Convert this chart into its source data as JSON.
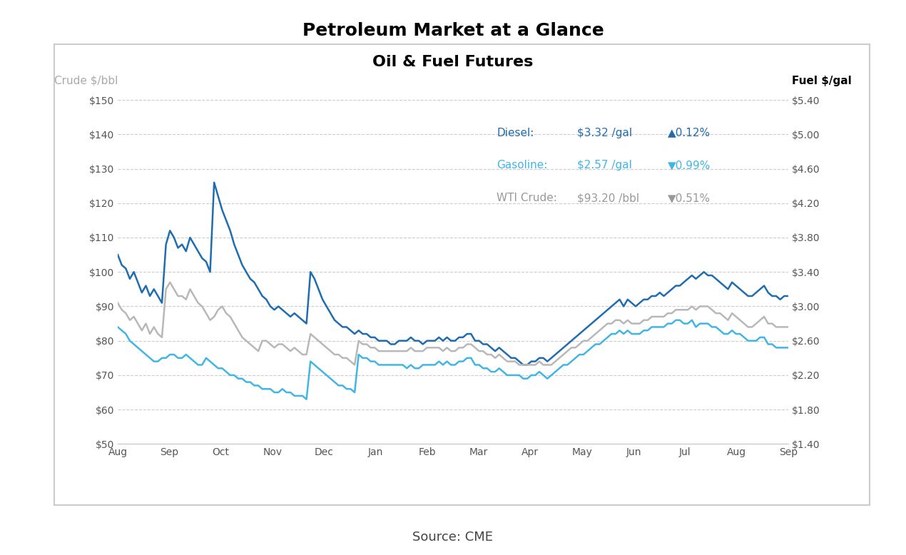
{
  "title": "Petroleum Market at a Glance",
  "subtitle": "Oil & Fuel Futures",
  "source": "Source: CME",
  "left_axis_label": "Crude $/bbl",
  "right_axis_label": "Fuel $/gal",
  "left_yticks": [
    50,
    60,
    70,
    80,
    90,
    100,
    110,
    120,
    130,
    140,
    150
  ],
  "left_ylabels": [
    "$50",
    "$60",
    "$70",
    "$80",
    "$90",
    "$100",
    "$110",
    "$120",
    "$130",
    "$140",
    "$150"
  ],
  "right_yticks": [
    1.4,
    1.8,
    2.2,
    2.6,
    3.0,
    3.4,
    3.8,
    4.2,
    4.6,
    5.0,
    5.4
  ],
  "right_ylabels": [
    "$1.40",
    "$1.80",
    "$2.20",
    "$2.60",
    "$3.00",
    "$3.40",
    "$3.80",
    "$4.20",
    "$4.60",
    "$5.00",
    "$5.40"
  ],
  "ylim_left": [
    50,
    150
  ],
  "ylim_right": [
    1.4,
    5.4
  ],
  "xtick_labels": [
    "Aug",
    "Sep",
    "Oct",
    "Nov",
    "Dec",
    "Jan",
    "Feb",
    "Mar",
    "Apr",
    "May",
    "Jun",
    "Jul",
    "Aug",
    "Sep"
  ],
  "legend": {
    "diesel_label": "Diesel:",
    "diesel_price": "$3.32 /gal",
    "diesel_change": "▲0.12%",
    "gasoline_label": "Gasoline:",
    "gasoline_price": "$2.57 /gal",
    "gasoline_change": "▼0.99%",
    "crude_label": "WTI Crude:",
    "crude_price": "$93.20 /bbl",
    "crude_change": "▼0.51%"
  },
  "colors": {
    "diesel": "#1f6cb0",
    "gasoline": "#41b6e6",
    "crude": "#b8b8b8",
    "left_label": "#aaaaaa",
    "right_label": "#000000",
    "grid": "#cccccc",
    "legend_diesel_text": "#1f6cb0",
    "legend_gasoline_text": "#41b6e6",
    "legend_crude_text": "#999999"
  },
  "diesel_data": [
    105,
    102,
    101,
    98,
    100,
    97,
    94,
    96,
    93,
    95,
    93,
    91,
    108,
    112,
    110,
    107,
    108,
    106,
    110,
    108,
    106,
    104,
    103,
    100,
    126,
    122,
    118,
    115,
    112,
    108,
    105,
    102,
    100,
    98,
    97,
    95,
    93,
    92,
    90,
    89,
    90,
    89,
    88,
    87,
    88,
    87,
    86,
    85,
    100,
    98,
    95,
    92,
    90,
    88,
    86,
    85,
    84,
    84,
    83,
    82,
    83,
    82,
    82,
    81,
    81,
    80,
    80,
    80,
    79,
    79,
    80,
    80,
    80,
    81,
    80,
    80,
    79,
    80,
    80,
    80,
    81,
    80,
    81,
    80,
    80,
    81,
    81,
    82,
    82,
    80,
    80,
    79,
    79,
    78,
    77,
    78,
    77,
    76,
    75,
    75,
    74,
    73,
    73,
    74,
    74,
    75,
    75,
    74,
    75,
    76,
    77,
    78,
    79,
    80,
    81,
    82,
    83,
    84,
    85,
    86,
    87,
    88,
    89,
    90,
    91,
    92,
    90,
    92,
    91,
    90,
    91,
    92,
    92,
    93,
    93,
    94,
    93,
    94,
    95,
    96,
    96,
    97,
    98,
    99,
    98,
    99,
    100,
    99,
    99,
    98,
    97,
    96,
    95,
    97,
    96,
    95,
    94,
    93,
    93,
    94,
    95,
    96,
    94,
    93,
    93,
    92,
    93,
    93
  ],
  "gasoline_data": [
    84,
    83,
    82,
    80,
    79,
    78,
    77,
    76,
    75,
    74,
    74,
    75,
    75,
    76,
    76,
    75,
    75,
    76,
    75,
    74,
    73,
    73,
    75,
    74,
    73,
    72,
    72,
    71,
    70,
    70,
    69,
    69,
    68,
    68,
    67,
    67,
    66,
    66,
    66,
    65,
    65,
    66,
    65,
    65,
    64,
    64,
    64,
    63,
    74,
    73,
    72,
    71,
    70,
    69,
    68,
    67,
    67,
    66,
    66,
    65,
    76,
    75,
    75,
    74,
    74,
    73,
    73,
    73,
    73,
    73,
    73,
    73,
    72,
    73,
    72,
    72,
    73,
    73,
    73,
    73,
    74,
    73,
    74,
    73,
    73,
    74,
    74,
    75,
    75,
    73,
    73,
    72,
    72,
    71,
    71,
    72,
    71,
    70,
    70,
    70,
    70,
    69,
    69,
    70,
    70,
    71,
    70,
    69,
    70,
    71,
    72,
    73,
    73,
    74,
    75,
    76,
    76,
    77,
    78,
    79,
    79,
    80,
    81,
    82,
    82,
    83,
    82,
    83,
    82,
    82,
    82,
    83,
    83,
    84,
    84,
    84,
    84,
    85,
    85,
    86,
    86,
    85,
    85,
    86,
    84,
    85,
    85,
    85,
    84,
    84,
    83,
    82,
    82,
    83,
    82,
    82,
    81,
    80,
    80,
    80,
    81,
    81,
    79,
    79,
    78,
    78,
    78,
    78
  ],
  "crude_data": [
    91,
    89,
    88,
    86,
    87,
    85,
    83,
    85,
    82,
    84,
    82,
    81,
    95,
    97,
    95,
    93,
    93,
    92,
    95,
    93,
    91,
    90,
    88,
    86,
    87,
    89,
    90,
    88,
    87,
    85,
    83,
    81,
    80,
    79,
    78,
    77,
    80,
    80,
    79,
    78,
    79,
    79,
    78,
    77,
    78,
    77,
    76,
    76,
    82,
    81,
    80,
    79,
    78,
    77,
    76,
    76,
    75,
    75,
    74,
    73,
    80,
    79,
    79,
    78,
    78,
    77,
    77,
    77,
    77,
    77,
    77,
    77,
    77,
    78,
    77,
    77,
    77,
    78,
    78,
    78,
    78,
    77,
    78,
    77,
    77,
    78,
    78,
    79,
    79,
    78,
    77,
    77,
    76,
    76,
    75,
    76,
    75,
    74,
    74,
    74,
    73,
    73,
    73,
    73,
    73,
    74,
    73,
    73,
    73,
    74,
    75,
    76,
    77,
    78,
    78,
    79,
    80,
    80,
    81,
    82,
    83,
    84,
    85,
    85,
    86,
    86,
    85,
    86,
    85,
    85,
    85,
    86,
    86,
    87,
    87,
    87,
    87,
    88,
    88,
    89,
    89,
    89,
    89,
    90,
    89,
    90,
    90,
    90,
    89,
    88,
    88,
    87,
    86,
    88,
    87,
    86,
    85,
    84,
    84,
    85,
    86,
    87,
    85,
    85,
    84,
    84,
    84,
    84
  ]
}
